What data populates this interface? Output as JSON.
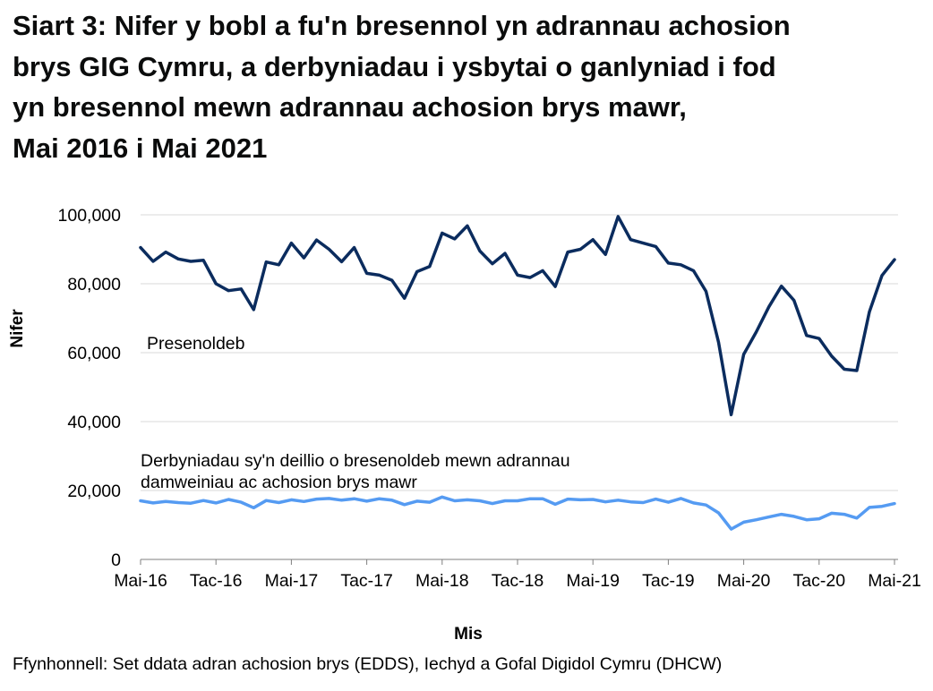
{
  "title_lines": [
    "Siart 3: Nifer y bobl a fu'n bresennol yn adrannau achosion",
    "brys GIG Cymru, a derbyniadau i ysbytai o ganlyniad i fod",
    "yn bresennol mewn adrannau achosion brys mawr,",
    "Mai 2016 i Mai 2021"
  ],
  "source": "Ffynhonnell: Set ddata adran achosion brys (EDDS), Iechyd a Gofal Digidol Cymru (DHCW)",
  "colors": {
    "attendance": "#0b2c5e",
    "admissions": "#559bf2",
    "grid": "#d9d9d9",
    "axis": "#7f7f7f"
  },
  "chart_data": {
    "type": "line",
    "title": "Nifer y bobl a fu'n bresennol yn adrannau achosion brys GIG Cymru, a derbyniadau i ysbytai o ganlyniad i fod yn bresennol mewn adrannau achosion brys mawr, Mai 2016 i Mai 2021",
    "xlabel": "Mis",
    "ylabel": "Nifer",
    "ylim": [
      0,
      100000
    ],
    "yticks": [
      0,
      20000,
      40000,
      60000,
      80000,
      100000
    ],
    "ytick_labels": [
      "0",
      "20,000",
      "40,000",
      "60,000",
      "80,000",
      "100,000"
    ],
    "xtick_labels": [
      "Mai-16",
      "Tac-16",
      "Mai-17",
      "Tac-17",
      "Mai-18",
      "Tac-18",
      "Mai-19",
      "Tac-19",
      "Mai-20",
      "Tac-20",
      "Mai-21"
    ],
    "xtick_every": 6,
    "grid": true,
    "series": [
      {
        "name": "Presenoldeb",
        "label_lines": [
          "Presenoldeb"
        ],
        "color_key": "attendance",
        "values": [
          90500,
          86500,
          89200,
          87200,
          86500,
          86800,
          80000,
          78000,
          78500,
          72500,
          86300,
          85500,
          91800,
          87500,
          92700,
          90000,
          86400,
          90500,
          83000,
          82500,
          81000,
          75800,
          83500,
          85000,
          94700,
          93000,
          96800,
          89500,
          85800,
          88800,
          82500,
          81800,
          83800,
          79200,
          89200,
          90000,
          92800,
          88500,
          99500,
          92800,
          91800,
          90800,
          86000,
          85500,
          83800,
          77800,
          63000,
          42000,
          59500,
          66000,
          73300,
          79300,
          75200,
          65000,
          64100,
          59000,
          55200,
          54800,
          71800,
          82400,
          87000
        ]
      },
      {
        "name": "Derbyniadau sy'n deillio o bresenoldeb mewn adrannau damweiniau ac achosion brys mawr",
        "label_lines": [
          "Derbyniadau sy'n deillio o bresenoldeb mewn adrannau",
          "damweiniau ac achosion brys mawr"
        ],
        "color_key": "admissions",
        "values": [
          17000,
          16400,
          16800,
          16500,
          16300,
          17100,
          16400,
          17400,
          16600,
          15000,
          17100,
          16500,
          17300,
          16800,
          17500,
          17700,
          17200,
          17600,
          16900,
          17600,
          17200,
          15900,
          16900,
          16600,
          18100,
          17000,
          17300,
          17000,
          16200,
          17000,
          17000,
          17600,
          17600,
          16000,
          17500,
          17300,
          17400,
          16700,
          17200,
          16700,
          16500,
          17500,
          16600,
          17700,
          16400,
          15800,
          13500,
          8800,
          10800,
          11500,
          12300,
          13100,
          12500,
          11500,
          11800,
          13400,
          13100,
          12000,
          15100,
          15400,
          16200
        ]
      }
    ]
  }
}
